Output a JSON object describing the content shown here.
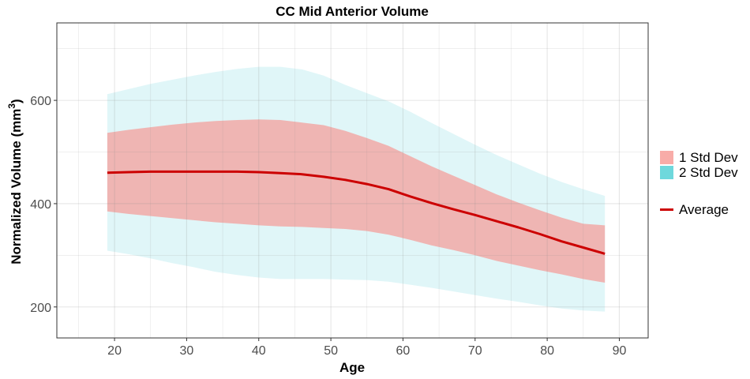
{
  "chart_data": {
    "type": "area",
    "title": "CC Mid Anterior Volume",
    "xlabel": "Age",
    "ylabel": "Normalized Volume   (mm",
    "ylabel_sup": "3",
    "ylabel_end": ")",
    "xlim": [
      12,
      94
    ],
    "ylim": [
      140,
      750
    ],
    "x_ticks": [
      20,
      30,
      40,
      50,
      60,
      70,
      80,
      90
    ],
    "y_ticks": [
      200,
      400,
      600
    ],
    "grid": true,
    "legend_position": "right",
    "x": [
      19,
      22,
      25,
      28,
      31,
      34,
      37,
      40,
      43,
      46,
      49,
      52,
      55,
      58,
      61,
      64,
      67,
      70,
      73,
      76,
      79,
      82,
      85,
      88
    ],
    "series": [
      {
        "name": "2 Std Dev",
        "kind": "band",
        "color": "#e0f6f8",
        "lower": [
          309,
          302,
          294,
          285,
          277,
          268,
          262,
          257,
          254,
          254,
          254,
          253,
          252,
          249,
          243,
          237,
          230,
          223,
          216,
          210,
          203,
          197,
          193,
          191
        ],
        "upper": [
          612,
          622,
          632,
          640,
          648,
          655,
          661,
          665,
          665,
          660,
          648,
          630,
          614,
          598,
          578,
          556,
          535,
          514,
          494,
          476,
          458,
          442,
          428,
          415
        ]
      },
      {
        "name": "1 Std Dev",
        "kind": "band",
        "color": "#efb5b3",
        "lower": [
          385,
          380,
          376,
          372,
          368,
          364,
          361,
          358,
          356,
          355,
          353,
          351,
          347,
          340,
          330,
          319,
          310,
          300,
          289,
          280,
          271,
          263,
          254,
          247
        ],
        "upper": [
          537,
          543,
          548,
          553,
          557,
          560,
          562,
          563,
          562,
          557,
          552,
          541,
          527,
          512,
          492,
          472,
          454,
          436,
          418,
          402,
          387,
          373,
          361,
          358
        ]
      },
      {
        "name": "Average",
        "kind": "line",
        "color": "#cc0000",
        "values": [
          460,
          461,
          462,
          462,
          462,
          462,
          462,
          461,
          459,
          457,
          452,
          446,
          438,
          428,
          414,
          401,
          389,
          378,
          366,
          354,
          341,
          327,
          315,
          303
        ]
      }
    ],
    "legend": [
      {
        "label": "1 Std Dev",
        "swatch": "fill",
        "color": "#f8aca8"
      },
      {
        "label": "2 Std Dev",
        "swatch": "fill",
        "color": "#6ed8dc"
      },
      {
        "label": "Average",
        "swatch": "line",
        "color": "#cc0000"
      }
    ]
  }
}
